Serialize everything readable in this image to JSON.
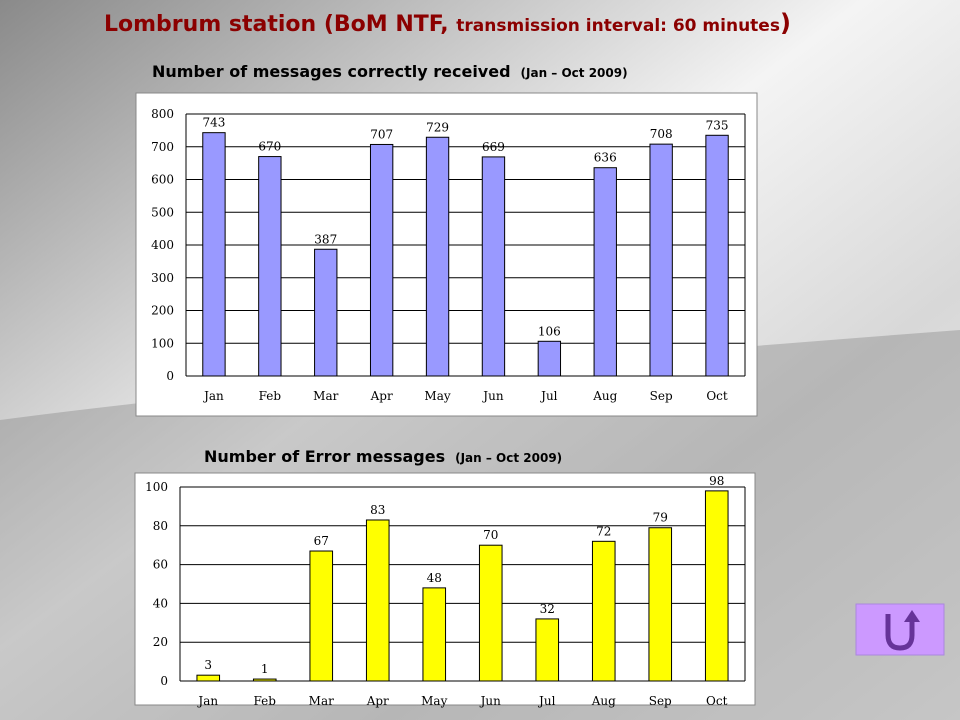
{
  "title": {
    "main": "Lombrum station (BoM NTF, ",
    "detail": "transmission interval: 60 minutes",
    "close": ")"
  },
  "chart_data": [
    {
      "type": "bar",
      "title": "Number of messages correctly received",
      "subtitle": "(Jan – Oct 2009)",
      "categories": [
        "Jan",
        "Feb",
        "Mar",
        "Apr",
        "May",
        "Jun",
        "Jul",
        "Aug",
        "Sep",
        "Oct"
      ],
      "values": [
        743,
        670,
        387,
        707,
        729,
        669,
        106,
        636,
        708,
        735
      ],
      "color": "#9999ff",
      "ylim": [
        0,
        800
      ],
      "yticks": [
        0,
        100,
        200,
        300,
        400,
        500,
        600,
        700,
        800
      ],
      "grid": true
    },
    {
      "type": "bar",
      "title": "Number of Error messages",
      "subtitle": "(Jan – Oct 2009)",
      "categories": [
        "Jan",
        "Feb",
        "Mar",
        "Apr",
        "May",
        "Jun",
        "Jul",
        "Aug",
        "Sep",
        "Oct"
      ],
      "values": [
        3,
        1,
        67,
        83,
        48,
        70,
        32,
        72,
        79,
        98
      ],
      "color": "#ffff00",
      "ylim": [
        0,
        100
      ],
      "yticks": [
        0,
        20,
        40,
        60,
        80,
        100
      ],
      "grid": true
    }
  ]
}
